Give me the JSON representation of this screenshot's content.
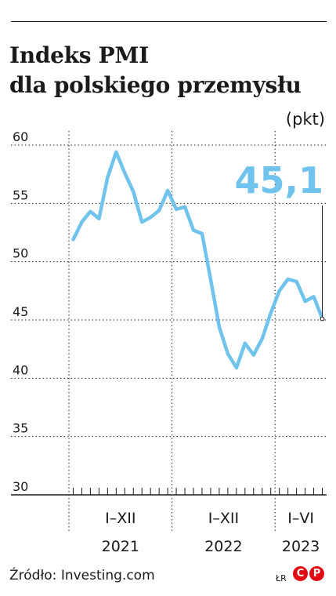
{
  "header": {
    "title_line1": "Indeks PMI",
    "title_line2": "dla polskiego przemysłu",
    "unit": "(pkt)"
  },
  "chart_data": {
    "type": "line",
    "ylim": [
      30,
      60
    ],
    "y_ticks": [
      "60",
      "55",
      "50",
      "45",
      "40",
      "35",
      "30"
    ],
    "periods": [
      {
        "label": "I–XII",
        "year": "2021",
        "months": 12
      },
      {
        "label": "I–XII",
        "year": "2022",
        "months": 12
      },
      {
        "label": "I–VI",
        "year": "2023",
        "months": 6
      }
    ],
    "series": [
      {
        "color": "#6fc3ec",
        "values": [
          51.9,
          53.4,
          54.3,
          53.7,
          57.2,
          59.4,
          57.6,
          56.0,
          53.4,
          53.8,
          54.4,
          56.1,
          54.5,
          54.7,
          52.7,
          52.4,
          48.5,
          44.4,
          42.1,
          40.9,
          43.0,
          42.0,
          43.4,
          45.6,
          47.5,
          48.5,
          48.3,
          46.6,
          47.0,
          45.1
        ]
      }
    ],
    "highlight": {
      "text": "45,1",
      "value": 45.1,
      "color": "#6fc3ec"
    },
    "grid": true
  },
  "footer": {
    "source": "Źródło: Investing.com",
    "credit": "ŁR",
    "logo_left": "C",
    "logo_right": "P"
  }
}
